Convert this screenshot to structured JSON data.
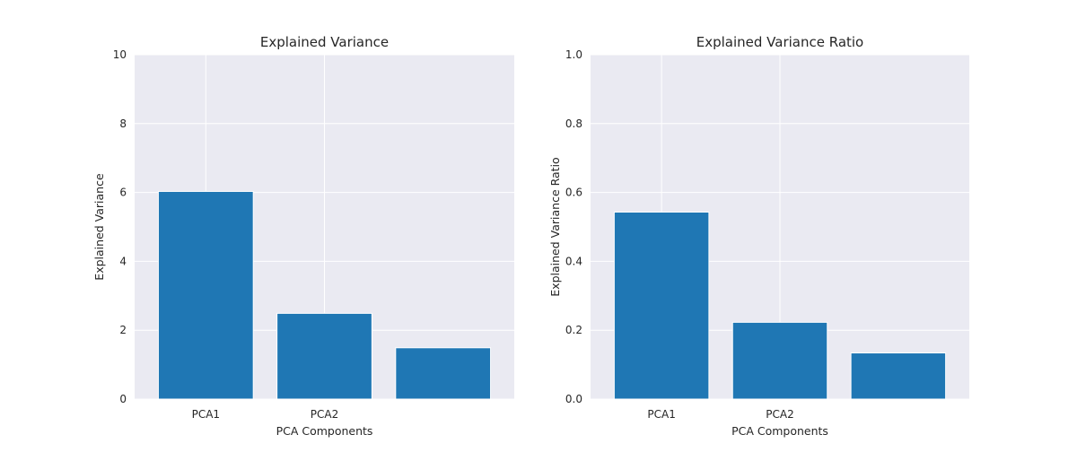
{
  "chart_data": [
    {
      "type": "bar",
      "title": "Explained Variance",
      "xlabel": "PCA Components",
      "ylabel": "Explained Variance",
      "categories": [
        "PCA1",
        "PCA2",
        ""
      ],
      "values": [
        6.03,
        2.49,
        1.49
      ],
      "ylim": [
        0,
        10
      ],
      "yticks": [
        0,
        2,
        4,
        6,
        8,
        10
      ],
      "ytick_labels": [
        "0",
        "2",
        "4",
        "6",
        "8",
        "10"
      ],
      "grid": true,
      "style": "seaborn-darkgrid"
    },
    {
      "type": "bar",
      "title": "Explained Variance Ratio",
      "xlabel": "PCA Components",
      "ylabel": "Explained Variance Ratio",
      "categories": [
        "PCA1",
        "PCA2",
        ""
      ],
      "values": [
        0.543,
        0.223,
        0.134
      ],
      "ylim": [
        0,
        1
      ],
      "yticks": [
        0,
        0.2,
        0.4,
        0.6,
        0.8,
        1.0
      ],
      "ytick_labels": [
        "0.0",
        "0.2",
        "0.4",
        "0.6",
        "0.8",
        "1.0"
      ],
      "grid": true,
      "style": "seaborn-darkgrid"
    }
  ],
  "colors": {
    "bar": "#1f77b4",
    "plot_background": "#eaeaf2",
    "grid": "#ffffff",
    "text": "#262626"
  }
}
